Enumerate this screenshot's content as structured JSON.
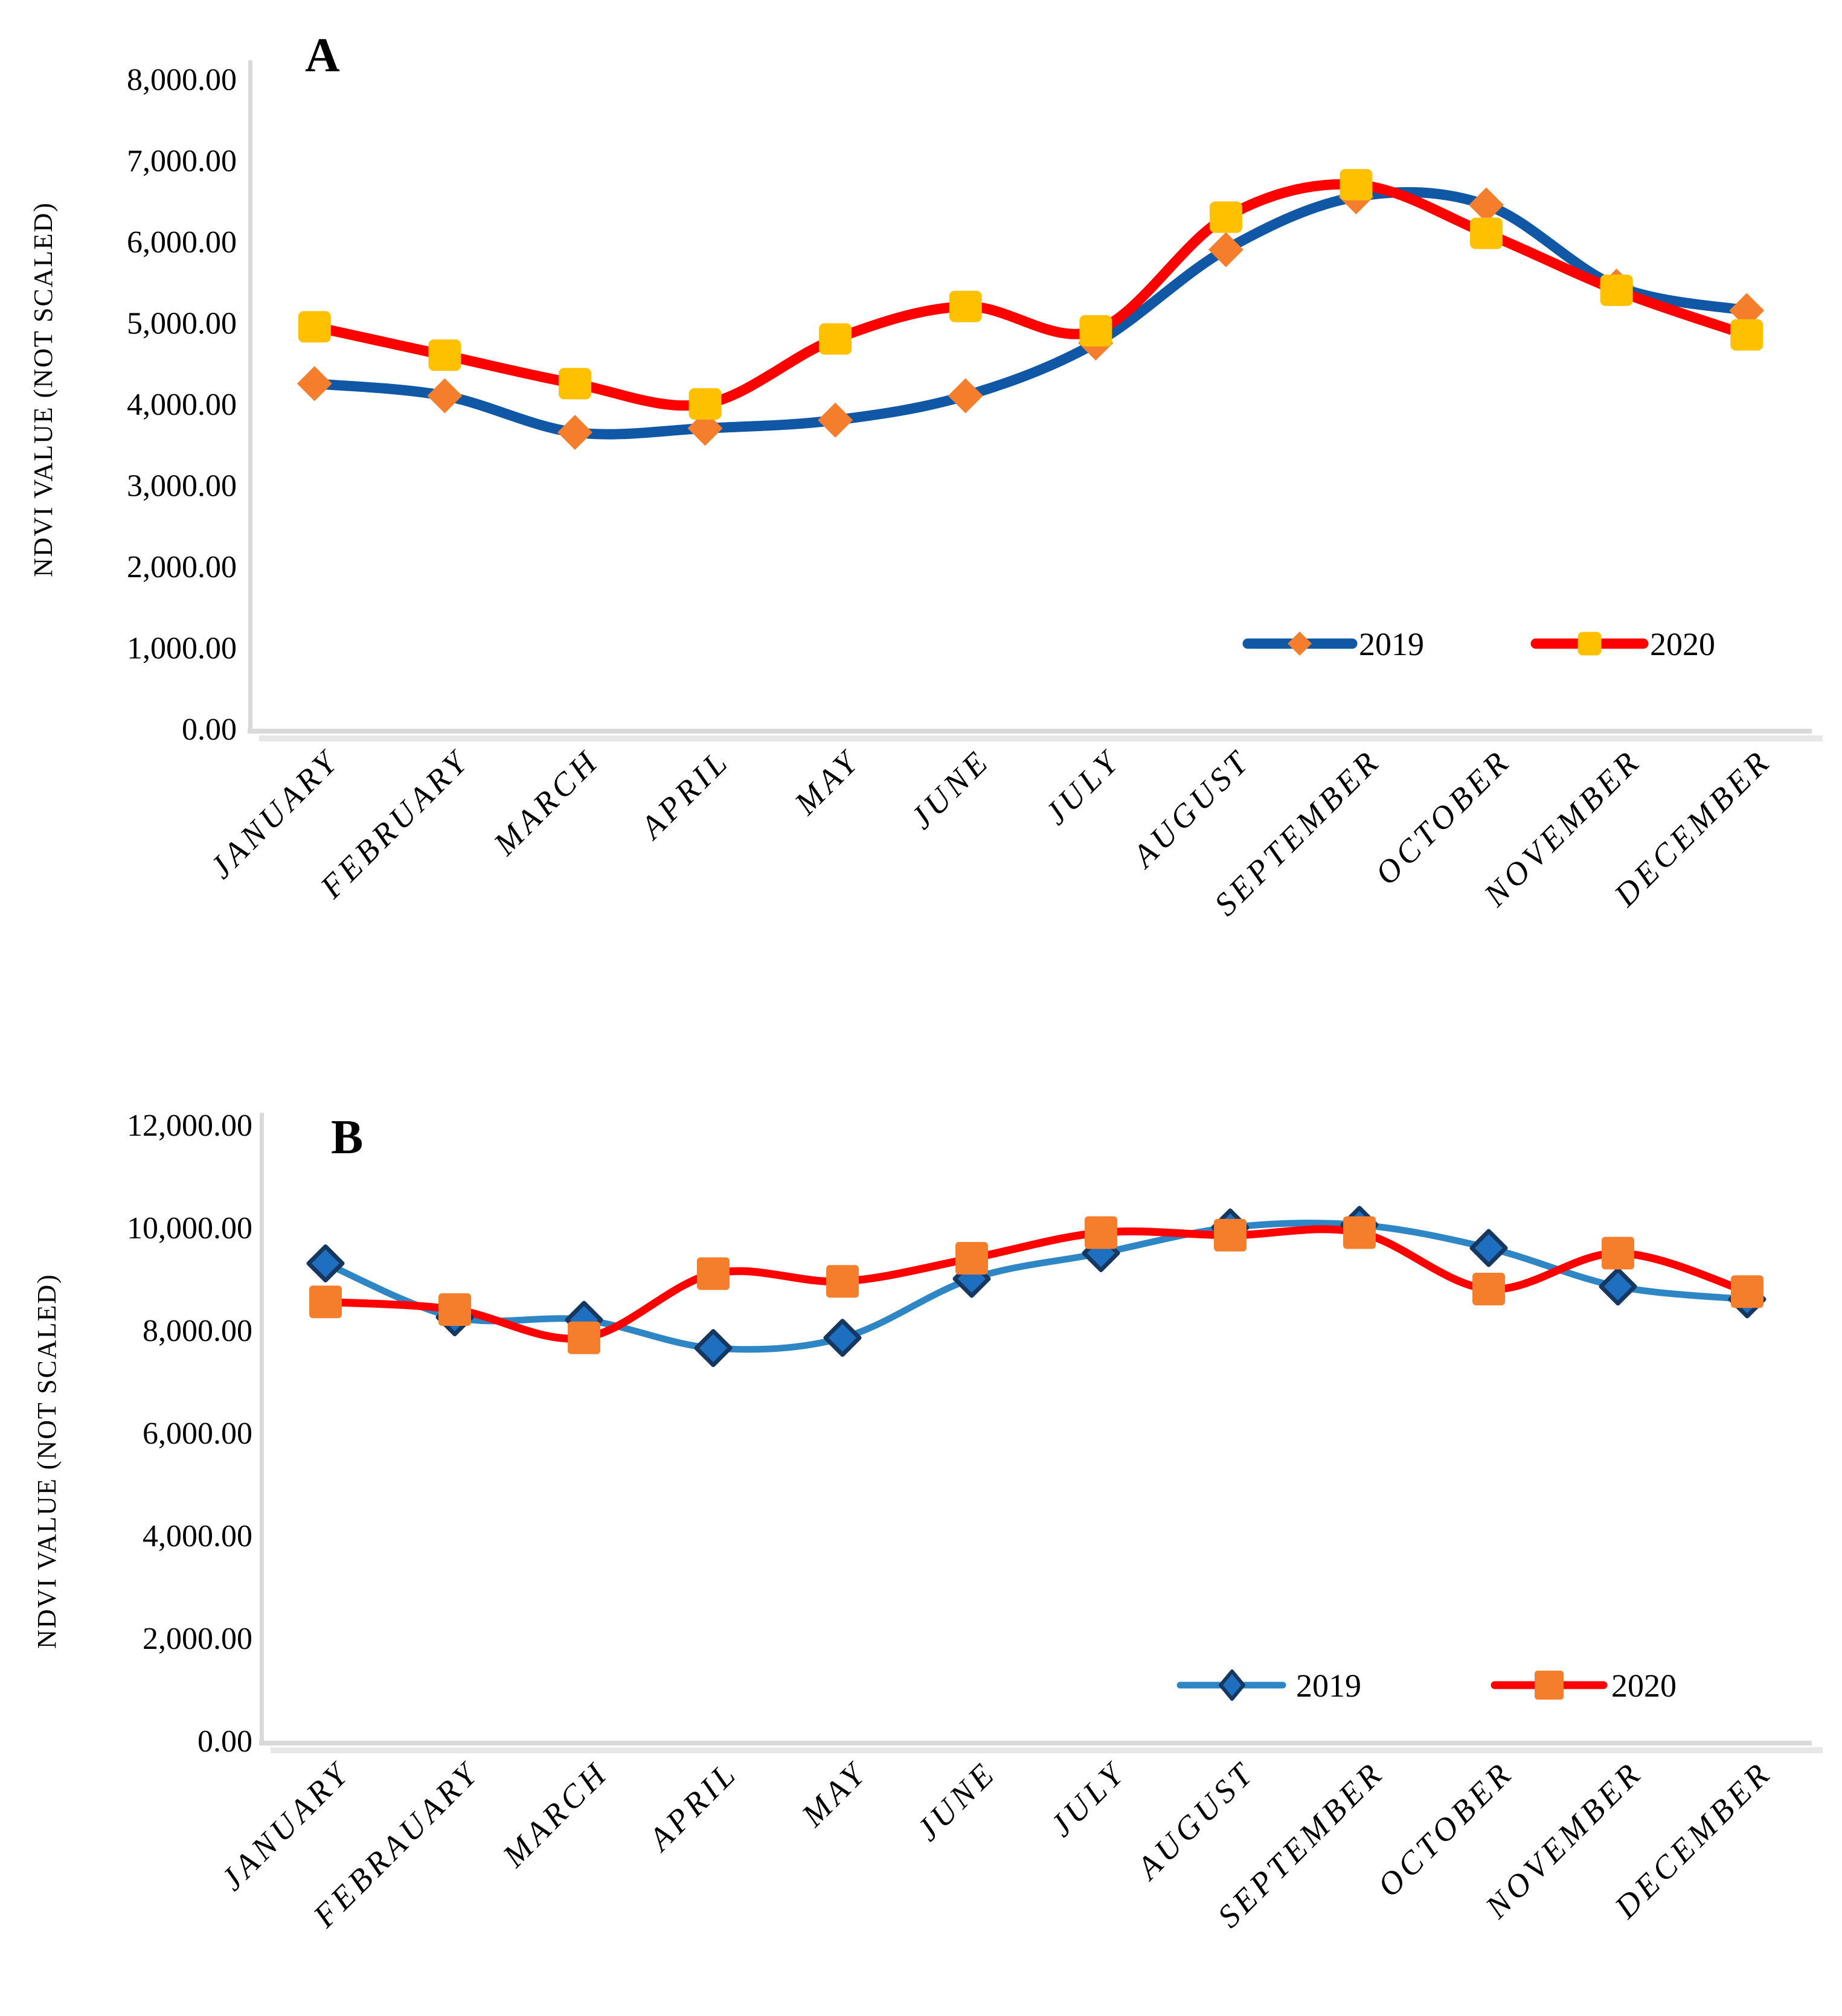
{
  "page": {
    "background": "#FFFFFF"
  },
  "chart_data": [
    {
      "type": "line",
      "panel_label": "A",
      "ylabel": "NDVI VALUE (NOT SCALED)",
      "xlabel": "",
      "ylim": [
        0,
        8000
      ],
      "y_tick_step": 1000,
      "y_tick_labels": [
        "0.00",
        "1,000.00",
        "2,000.00",
        "3,000.00",
        "4,000.00",
        "5,000.00",
        "6,000.00",
        "7,000.00",
        "8,000.00"
      ],
      "categories": [
        "JANUARY",
        "FEBRUARY",
        "MARCH",
        "APRIL",
        "MAY",
        "JUNE",
        "JULY",
        "AUGUST",
        "SEPTEMBER",
        "OCTOBER",
        "NOVEMBER",
        "DECEMBER"
      ],
      "grid": false,
      "legend_position": "inside-lower-right",
      "series": [
        {
          "name": "2019",
          "values": [
            4250,
            4100,
            3650,
            3700,
            3800,
            4100,
            4750,
            5900,
            6550,
            6450,
            5450,
            5150
          ],
          "line_color": "#1057A6",
          "marker": "diamond",
          "marker_fill": "#F47E2C",
          "marker_stroke": "none"
        },
        {
          "name": "2020",
          "values": [
            4950,
            4600,
            4250,
            4000,
            4800,
            5200,
            4900,
            6300,
            6700,
            6100,
            5400,
            4850
          ],
          "line_color": "#FF0000",
          "marker": "square",
          "marker_fill": "#FFC000",
          "marker_stroke": "none"
        }
      ]
    },
    {
      "type": "line",
      "panel_label": "B",
      "ylabel": "NDVI VALUE (NOT SCALED)",
      "xlabel": "",
      "ylim": [
        0,
        12000
      ],
      "y_tick_step": 2000,
      "y_tick_labels": [
        "0.00",
        "2,000.00",
        "4,000.00",
        "6,000.00",
        "8,000.00",
        "10,000.00",
        "12,000.00"
      ],
      "categories": [
        "JANUARY",
        "FEBRAUARY",
        "MARCH",
        "APRIL",
        "MAY",
        "JUNE",
        "JULY",
        "AUGUST",
        "SEPTEMBER",
        "OCTOBER",
        "NOVEMBER",
        "DECEMBER"
      ],
      "grid": false,
      "legend_position": "inside-lower-right",
      "series": [
        {
          "name": "2019",
          "values": [
            9300,
            8250,
            8200,
            7650,
            7850,
            9000,
            9500,
            10000,
            10050,
            9600,
            8850,
            8600
          ],
          "line_color": "#2E86C4",
          "marker": "diamond",
          "marker_fill": "#1F6FC0",
          "marker_stroke": "#16375F"
        },
        {
          "name": "2020",
          "values": [
            8550,
            8400,
            7850,
            9100,
            8950,
            9400,
            9900,
            9850,
            9900,
            8800,
            9500,
            8750
          ],
          "line_color": "#FF0000",
          "marker": "square",
          "marker_fill": "#F47E2C",
          "marker_stroke": "none"
        }
      ]
    }
  ],
  "colors": {
    "axis_line": "#D9D9D9",
    "axis_shadow": "#E7E7E7",
    "text": "#000000",
    "chart_a_2019_line": "#1057A6",
    "chart_a_2019_marker": "#F47E2C",
    "chart_a_2020_line": "#FF0000",
    "chart_a_2020_marker": "#FFC000",
    "chart_b_2019_line": "#2E86C4",
    "chart_b_2019_marker": "#1F6FC0",
    "chart_b_2019_marker_border": "#16375F",
    "chart_b_2020_line": "#FF0000",
    "chart_b_2020_marker": "#F47E2C"
  }
}
